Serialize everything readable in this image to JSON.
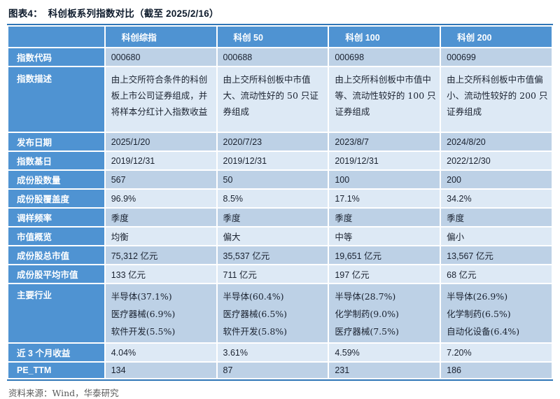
{
  "title": "图表4：  科创板系列指数对比（截至 2025/2/16）",
  "columns": {
    "c1": "科创综指",
    "c2": "科创 50",
    "c3": "科创 100",
    "c4": "科创 200"
  },
  "rows": [
    {
      "label": "指数代码",
      "v": [
        "000680",
        "000688",
        "000698",
        "000699"
      ]
    },
    {
      "label": "指数描述",
      "v": [
        "由上交所符合条件的科创板上市公司证券组成，并将样本分红计入指数收益",
        "由上交所科创板中市值大、流动性好的 50 只证券组成",
        "由上交所科创板中市值中等、流动性较好的 100 只证券组成",
        "由上交所科创板中市值偏小、流动性较好的 200 只证券组成"
      ]
    },
    {
      "label": "发布日期",
      "v": [
        "2025/1/20",
        "2020/7/23",
        "2023/8/7",
        "2024/8/20"
      ]
    },
    {
      "label": "指数基日",
      "v": [
        "2019/12/31",
        "2019/12/31",
        "2019/12/31",
        "2022/12/30"
      ]
    },
    {
      "label": "成份股数量",
      "v": [
        "567",
        "50",
        "100",
        "200"
      ]
    },
    {
      "label": "成份股覆盖度",
      "v": [
        "96.9%",
        "8.5%",
        "17.1%",
        "34.2%"
      ]
    },
    {
      "label": "调样频率",
      "v": [
        "季度",
        "季度",
        "季度",
        "季度"
      ]
    },
    {
      "label": "市值概览",
      "v": [
        "均衡",
        "偏大",
        "中等",
        "偏小"
      ]
    },
    {
      "label": "成份股总市值",
      "v": [
        "75,312 亿元",
        "35,537 亿元",
        "19,651 亿元",
        "13,567 亿元"
      ]
    },
    {
      "label": "成份股平均市值",
      "v": [
        "133 亿元",
        "711 亿元",
        "197 亿元",
        "68 亿元"
      ]
    },
    {
      "label": "主要行业",
      "v": [
        "半导体(37.1%)\n医疗器械(6.9%)\n软件开发(5.5%)",
        "半导体(60.4%)\n医疗器械(6.5%)\n软件开发(5.8%)",
        "半导体(28.7%)\n化学制药(9.0%)\n医疗器械(7.5%)",
        "半导体(26.9%)\n化学制药(6.5%)\n自动化设备(6.4%)"
      ]
    },
    {
      "label": "近 3 个月收益",
      "v": [
        "4.04%",
        "3.61%",
        "4.59%",
        "7.20%"
      ]
    },
    {
      "label": "PE_TTM",
      "v": [
        "134",
        "87",
        "231",
        "186"
      ]
    }
  ],
  "footer": "资料来源：Wind，华泰研究",
  "colors": {
    "header_blue": "#4f93d2",
    "stripe_medium": "#bdd1e6",
    "stripe_light": "#dde9f5",
    "rule": "#2e75b6",
    "title_color": "#0e1b2c",
    "text": "#1a2230",
    "footer_gray": "#5a5a5a"
  }
}
